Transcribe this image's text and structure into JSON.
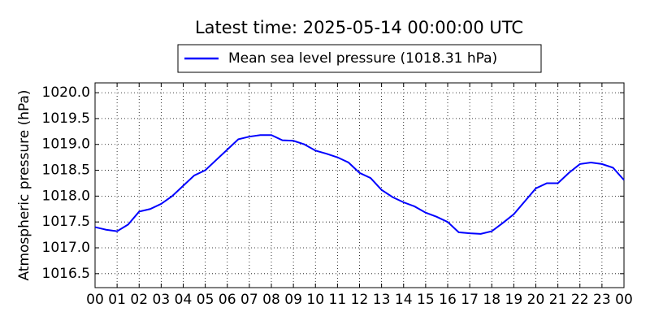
{
  "chart_data": {
    "type": "line",
    "title": "Latest time: 2025-05-14 00:00:00 UTC",
    "ylabel": "Atmospheric pressure (hPa)",
    "x": [
      0,
      0.5,
      1,
      1.5,
      2,
      2.5,
      3,
      3.5,
      4,
      4.5,
      5,
      5.5,
      6,
      6.5,
      7,
      7.5,
      8,
      8.5,
      9,
      9.5,
      10,
      10.5,
      11,
      11.5,
      12,
      12.5,
      13,
      13.5,
      14,
      14.5,
      15,
      15.5,
      16,
      16.5,
      17,
      17.5,
      18,
      18.5,
      19,
      19.5,
      20,
      20.5,
      21,
      21.5,
      22,
      22.5,
      23,
      23.5,
      24
    ],
    "series": [
      {
        "name": "Mean sea level pressure (1018.31 hPa)",
        "color": "#0000ff",
        "values": [
          1017.4,
          1017.35,
          1017.32,
          1017.45,
          1017.7,
          1017.75,
          1017.85,
          1018.0,
          1018.2,
          1018.4,
          1018.5,
          1018.7,
          1018.9,
          1019.1,
          1019.15,
          1019.18,
          1019.18,
          1019.08,
          1019.07,
          1019.0,
          1018.88,
          1018.82,
          1018.75,
          1018.65,
          1018.45,
          1018.35,
          1018.12,
          1017.98,
          1017.88,
          1017.8,
          1017.68,
          1017.6,
          1017.5,
          1017.3,
          1017.28,
          1017.27,
          1017.32,
          1017.48,
          1017.65,
          1017.9,
          1018.15,
          1018.25,
          1018.25,
          1018.45,
          1018.62,
          1018.65,
          1018.62,
          1018.55,
          1018.31
        ]
      }
    ],
    "xlim": [
      0,
      24
    ],
    "xticks": [
      {
        "value": 0,
        "label": "00"
      },
      {
        "value": 1,
        "label": "01"
      },
      {
        "value": 2,
        "label": "02"
      },
      {
        "value": 3,
        "label": "03"
      },
      {
        "value": 4,
        "label": "04"
      },
      {
        "value": 5,
        "label": "05"
      },
      {
        "value": 6,
        "label": "06"
      },
      {
        "value": 7,
        "label": "07"
      },
      {
        "value": 8,
        "label": "08"
      },
      {
        "value": 9,
        "label": "09"
      },
      {
        "value": 10,
        "label": "10"
      },
      {
        "value": 11,
        "label": "11"
      },
      {
        "value": 12,
        "label": "12"
      },
      {
        "value": 13,
        "label": "13"
      },
      {
        "value": 14,
        "label": "14"
      },
      {
        "value": 15,
        "label": "15"
      },
      {
        "value": 16,
        "label": "16"
      },
      {
        "value": 17,
        "label": "17"
      },
      {
        "value": 18,
        "label": "18"
      },
      {
        "value": 19,
        "label": "19"
      },
      {
        "value": 20,
        "label": "20"
      },
      {
        "value": 21,
        "label": "21"
      },
      {
        "value": 22,
        "label": "22"
      },
      {
        "value": 23,
        "label": "23"
      },
      {
        "value": 24,
        "label": "00"
      }
    ],
    "ylim": [
      1016.23,
      1020.19
    ],
    "yticks": [
      {
        "value": 1016.5,
        "label": "1016.5"
      },
      {
        "value": 1017,
        "label": "1017.0"
      },
      {
        "value": 1017.5,
        "label": "1017.5"
      },
      {
        "value": 1018,
        "label": "1018.0"
      },
      {
        "value": 1018.5,
        "label": "1018.5"
      },
      {
        "value": 1019,
        "label": "1019.0"
      },
      {
        "value": 1019.5,
        "label": "1019.5"
      },
      {
        "value": 1020,
        "label": "1020.0"
      }
    ],
    "grid": true,
    "legend": "top"
  }
}
